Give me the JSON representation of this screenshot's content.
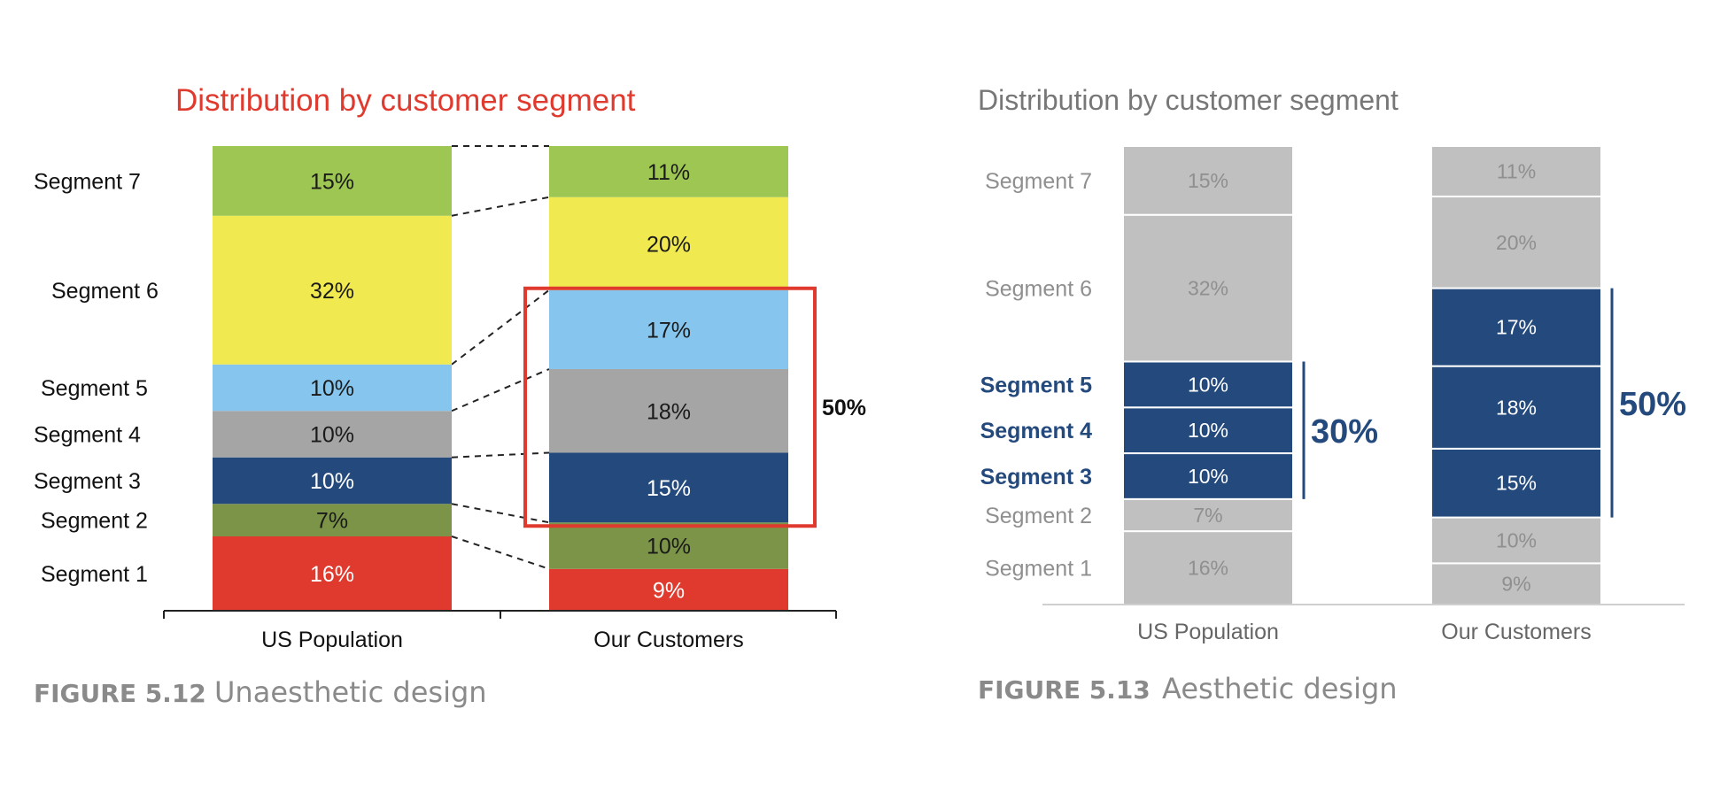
{
  "chart_data": [
    {
      "type": "bar",
      "stacked": true,
      "title": "Distribution by customer segment",
      "title_color": "#e03a2f",
      "categories": [
        "US Population",
        "Our Customers"
      ],
      "series": [
        {
          "name": "Segment 1",
          "values": [
            16,
            9
          ],
          "labels": [
            "16%",
            "9%"
          ],
          "color": "#e03a2f",
          "text_color": "#ffffff"
        },
        {
          "name": "Segment 2",
          "values": [
            7,
            10
          ],
          "labels": [
            "7%",
            "10%"
          ],
          "color": "#7b9447",
          "text_color": "#1a1a1a"
        },
        {
          "name": "Segment 3",
          "values": [
            10,
            15
          ],
          "labels": [
            "10%",
            "15%"
          ],
          "color": "#244a7d",
          "text_color": "#ffffff"
        },
        {
          "name": "Segment 4",
          "values": [
            10,
            18
          ],
          "labels": [
            "10%",
            "18%"
          ],
          "color": "#a5a5a5",
          "text_color": "#1a1a1a"
        },
        {
          "name": "Segment 5",
          "values": [
            10,
            17
          ],
          "labels": [
            "10%",
            "17%"
          ],
          "color": "#86c6ee",
          "text_color": "#1a1a1a"
        },
        {
          "name": "Segment 6",
          "values": [
            32,
            20
          ],
          "labels": [
            "32%",
            "20%"
          ],
          "color": "#f0ea50",
          "text_color": "#1a1a1a"
        },
        {
          "name": "Segment 7",
          "values": [
            15,
            11
          ],
          "labels": [
            "15%",
            "11%"
          ],
          "color": "#9dc652",
          "text_color": "#1a1a1a"
        }
      ],
      "annotation": {
        "text": "50%",
        "category": "Our Customers",
        "segments": [
          "Segment 3",
          "Segment 4",
          "Segment 5"
        ],
        "color": "#e03a2f"
      },
      "connector_lines": "dashed",
      "grid": false,
      "figure_number": "FIGURE 5.12",
      "figure_caption": "Unaesthetic design"
    },
    {
      "type": "bar",
      "stacked": true,
      "title": "Distribution by customer segment",
      "title_color": "#777777",
      "categories": [
        "US Population",
        "Our Customers"
      ],
      "series": [
        {
          "name": "Segment 1",
          "values": [
            16,
            9
          ],
          "labels": [
            "16%",
            "9%"
          ],
          "highlight": false
        },
        {
          "name": "Segment 2",
          "values": [
            7,
            10
          ],
          "labels": [
            "7%",
            "10%"
          ],
          "highlight": false
        },
        {
          "name": "Segment 3",
          "values": [
            10,
            15
          ],
          "labels": [
            "10%",
            "15%"
          ],
          "highlight": true
        },
        {
          "name": "Segment 4",
          "values": [
            10,
            18
          ],
          "labels": [
            "10%",
            "18%"
          ],
          "highlight": true
        },
        {
          "name": "Segment 5",
          "values": [
            10,
            17
          ],
          "labels": [
            "10%",
            "17%"
          ],
          "highlight": true
        },
        {
          "name": "Segment 6",
          "values": [
            32,
            20
          ],
          "labels": [
            "32%",
            "20%"
          ],
          "highlight": false
        },
        {
          "name": "Segment 7",
          "values": [
            15,
            11
          ],
          "labels": [
            "15%",
            "11%"
          ],
          "highlight": false
        }
      ],
      "highlight_color": "#244a7d",
      "base_color": "#c0c0c0",
      "base_text_color": "#8f8f8f",
      "annotations": [
        {
          "text": "30%",
          "category": "US Population"
        },
        {
          "text": "50%",
          "category": "Our Customers"
        }
      ],
      "grid": false,
      "figure_number": "FIGURE 5.13",
      "figure_caption": "Aesthetic design"
    }
  ]
}
